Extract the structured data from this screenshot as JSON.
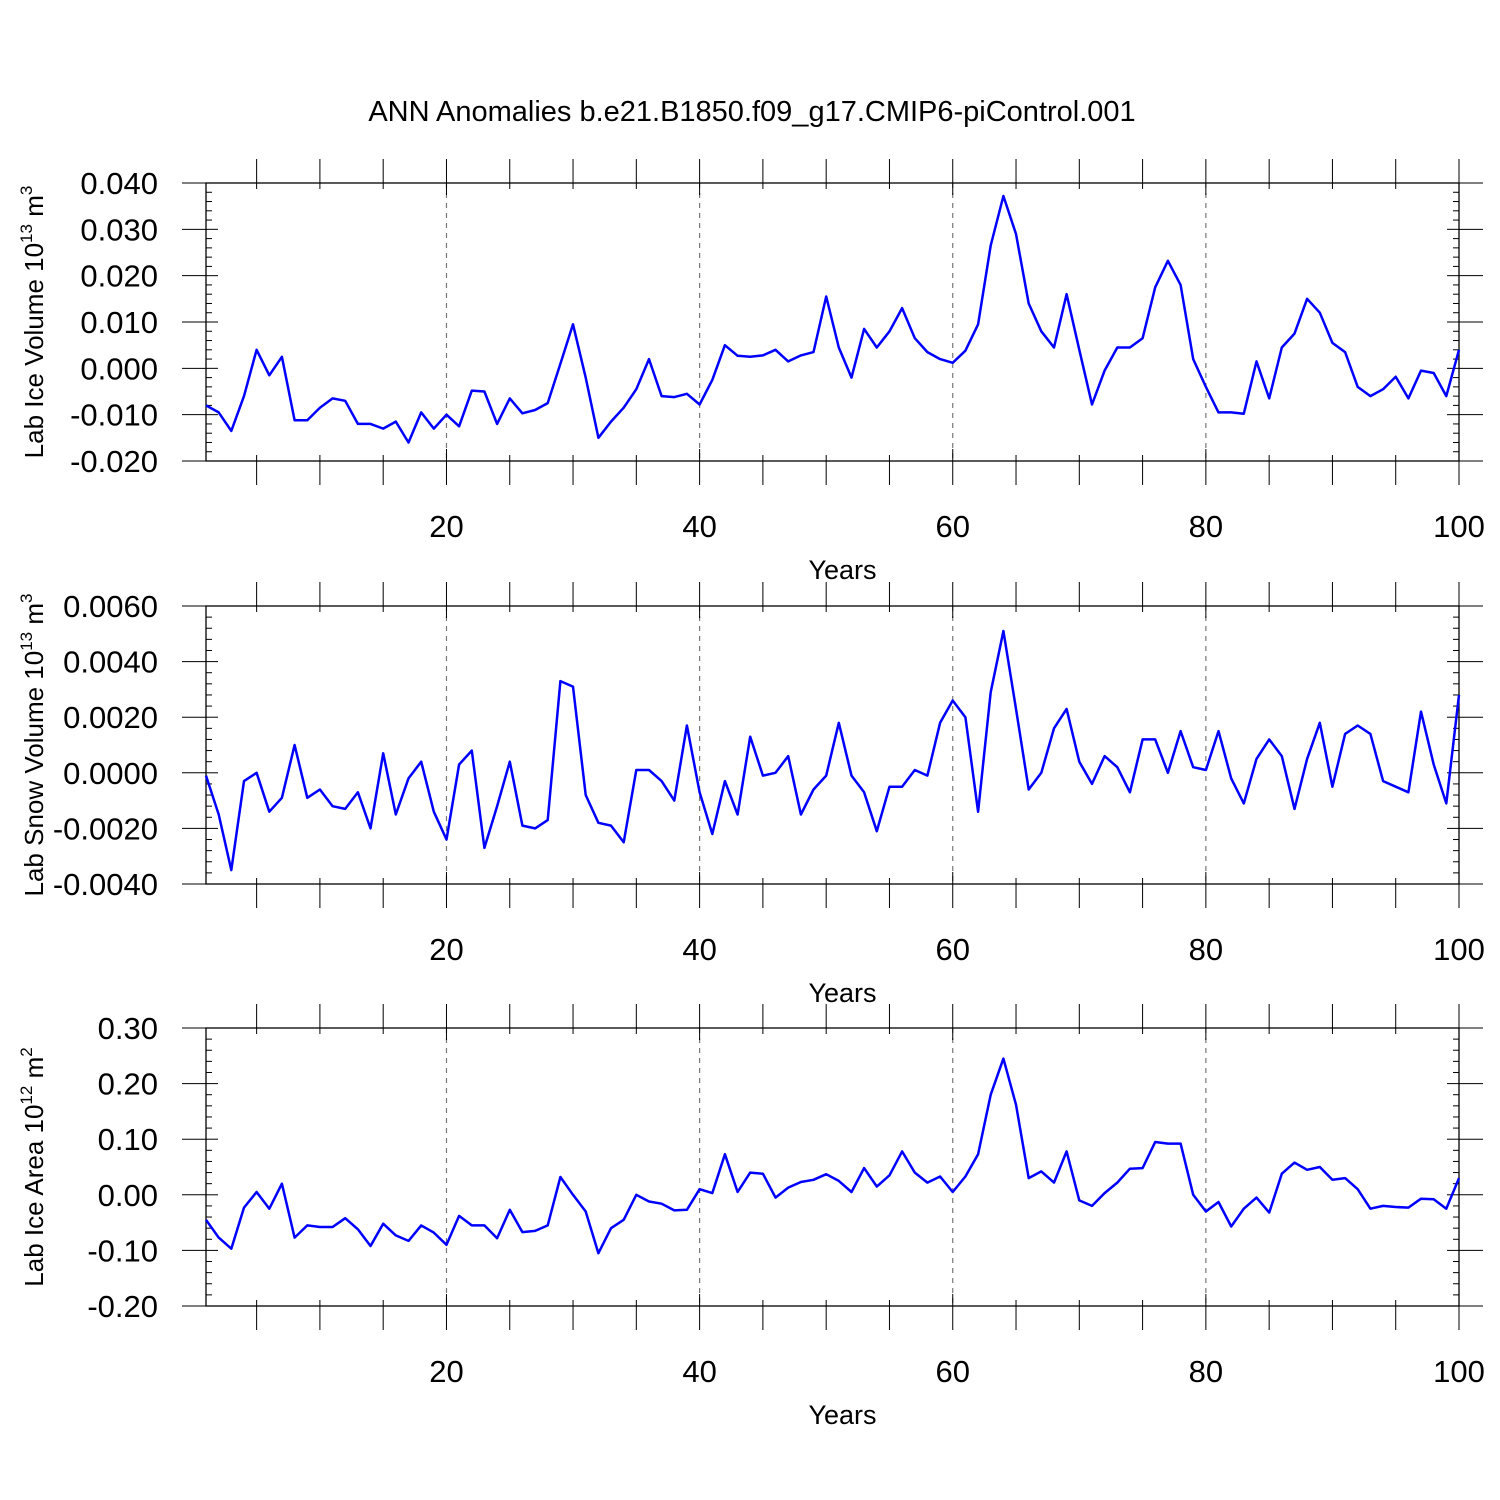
{
  "title": "ANN Anomalies b.e21.B1850.f09_g17.CMIP6-piControl.001",
  "line_color": "#0000ff",
  "chart_data": [
    {
      "type": "line",
      "ylabel": {
        "base": "Lab Ice Volume 10",
        "exp": "13",
        "unit": " m",
        "uexp": "3"
      },
      "xlabel": "Years",
      "xlim": [
        1,
        100
      ],
      "ylim": [
        -0.02,
        0.04
      ],
      "yticks": [
        -0.02,
        -0.01,
        0.0,
        0.01,
        0.02,
        0.03,
        0.04
      ],
      "ytick_labels": [
        "-0.020",
        "-0.010",
        "0.000",
        "0.010",
        "0.020",
        "0.030",
        "0.040"
      ],
      "xticks": [
        20,
        40,
        60,
        80,
        100
      ],
      "xtick_labels": [
        "20",
        "40",
        "60",
        "80",
        "100"
      ],
      "grid_x": [
        20,
        40,
        60,
        80
      ],
      "x_start": 1,
      "values": [
        -0.008,
        -0.0095,
        -0.0135,
        -0.006,
        0.004,
        -0.0015,
        0.0025,
        -0.0112,
        -0.0112,
        -0.0085,
        -0.0065,
        -0.007,
        -0.012,
        -0.012,
        -0.013,
        -0.0115,
        -0.016,
        -0.0095,
        -0.013,
        -0.01,
        -0.0125,
        -0.0048,
        -0.005,
        -0.012,
        -0.0065,
        -0.0097,
        -0.009,
        -0.0075,
        0.001,
        0.0095,
        -0.002,
        -0.015,
        -0.0115,
        -0.0085,
        -0.0045,
        0.002,
        -0.006,
        -0.0062,
        -0.0055,
        -0.0078,
        -0.0025,
        0.005,
        0.0027,
        0.0025,
        0.0028,
        0.004,
        0.0015,
        0.0028,
        0.0035,
        0.0155,
        0.0045,
        -0.002,
        0.0085,
        0.0045,
        0.008,
        0.013,
        0.0065,
        0.0035,
        0.002,
        0.0012,
        0.0038,
        0.0095,
        0.0265,
        0.0372,
        0.029,
        0.014,
        0.008,
        0.0045,
        0.016,
        0.004,
        -0.0078,
        -0.0005,
        0.0045,
        0.0045,
        0.0065,
        0.0175,
        0.0232,
        0.018,
        0.002,
        -0.004,
        -0.0095,
        -0.0095,
        -0.0098,
        0.0015,
        -0.0065,
        0.0045,
        0.0075,
        0.015,
        0.012,
        0.0055,
        0.0035,
        -0.004,
        -0.006,
        -0.0045,
        -0.0018,
        -0.0065,
        -0.0005,
        -0.001,
        -0.006,
        0.004
      ]
    },
    {
      "type": "line",
      "ylabel": {
        "base": "Lab Snow Volume 10",
        "exp": "13",
        "unit": " m",
        "uexp": "3"
      },
      "xlabel": "Years",
      "xlim": [
        1,
        100
      ],
      "ylim": [
        -0.004,
        0.006
      ],
      "yticks": [
        -0.004,
        -0.002,
        0.0,
        0.002,
        0.004,
        0.006
      ],
      "ytick_labels": [
        "-0.0040",
        "-0.0020",
        "0.0000",
        "0.0020",
        "0.0040",
        "0.0060"
      ],
      "xticks": [
        20,
        40,
        60,
        80,
        100
      ],
      "xtick_labels": [
        "20",
        "40",
        "60",
        "80",
        "100"
      ],
      "grid_x": [
        20,
        40,
        60,
        80
      ],
      "x_start": 1,
      "values": [
        -0.0001,
        -0.0015,
        -0.0035,
        -0.0003,
        0.0,
        -0.0014,
        -0.0009,
        0.001,
        -0.0009,
        -0.0006,
        -0.0012,
        -0.0013,
        -0.0007,
        -0.002,
        0.0007,
        -0.0015,
        -0.0002,
        0.0004,
        -0.0014,
        -0.0024,
        0.0003,
        0.0008,
        -0.0027,
        -0.0012,
        0.0004,
        -0.0019,
        -0.002,
        -0.0017,
        0.0033,
        0.0031,
        -0.0008,
        -0.0018,
        -0.0019,
        -0.0025,
        0.0001,
        0.0001,
        -0.0003,
        -0.001,
        0.0017,
        -0.0007,
        -0.0022,
        -0.0003,
        -0.0015,
        0.0013,
        -0.0001,
        0.0,
        0.0006,
        -0.0015,
        -0.0006,
        -0.0001,
        0.0018,
        -0.0001,
        -0.0007,
        -0.0021,
        -0.0005,
        -0.0005,
        0.0001,
        -0.0001,
        0.0018,
        0.0026,
        0.002,
        -0.0014,
        0.0029,
        0.0051,
        0.0023,
        -0.0006,
        0.0,
        0.0016,
        0.0023,
        0.0004,
        -0.0004,
        0.0006,
        0.0002,
        -0.0007,
        0.0012,
        0.0012,
        0.0,
        0.0015,
        0.0002,
        0.0001,
        0.0015,
        -0.0002,
        -0.0011,
        0.0005,
        0.0012,
        0.0006,
        -0.0013,
        0.0005,
        0.0018,
        -0.0005,
        0.0014,
        0.0017,
        0.0014,
        -0.0003,
        -0.0005,
        -0.0007,
        0.0022,
        0.0003,
        -0.0011,
        0.0028
      ]
    },
    {
      "type": "line",
      "ylabel": {
        "base": "Lab Ice Area 10",
        "exp": "12",
        "unit": " m",
        "uexp": "2"
      },
      "xlabel": "Years",
      "xlim": [
        1,
        100
      ],
      "ylim": [
        -0.2,
        0.3
      ],
      "yticks": [
        -0.2,
        -0.1,
        0.0,
        0.1,
        0.2,
        0.3
      ],
      "ytick_labels": [
        "-0.20",
        "-0.10",
        "0.00",
        "0.10",
        "0.20",
        "0.30"
      ],
      "xticks": [
        20,
        40,
        60,
        80,
        100
      ],
      "xtick_labels": [
        "20",
        "40",
        "60",
        "80",
        "100"
      ],
      "grid_x": [
        20,
        40,
        60,
        80
      ],
      "x_start": 1,
      "values": [
        -0.045,
        -0.077,
        -0.097,
        -0.023,
        0.005,
        -0.025,
        0.02,
        -0.077,
        -0.055,
        -0.058,
        -0.058,
        -0.042,
        -0.062,
        -0.092,
        -0.052,
        -0.073,
        -0.083,
        -0.055,
        -0.068,
        -0.09,
        -0.038,
        -0.055,
        -0.055,
        -0.078,
        -0.027,
        -0.067,
        -0.065,
        -0.055,
        0.032,
        0.0,
        -0.03,
        -0.105,
        -0.06,
        -0.045,
        0.0,
        -0.012,
        -0.016,
        -0.028,
        -0.027,
        0.01,
        0.003,
        0.073,
        0.005,
        0.04,
        0.038,
        -0.005,
        0.013,
        0.023,
        0.027,
        0.037,
        0.025,
        0.005,
        0.048,
        0.015,
        0.035,
        0.078,
        0.04,
        0.022,
        0.033,
        0.005,
        0.033,
        0.073,
        0.18,
        0.245,
        0.162,
        0.03,
        0.042,
        0.022,
        0.078,
        -0.01,
        -0.02,
        0.003,
        0.022,
        0.047,
        0.048,
        0.095,
        0.092,
        0.092,
        0.0,
        -0.03,
        -0.013,
        -0.057,
        -0.025,
        -0.005,
        -0.032,
        0.038,
        0.058,
        0.045,
        0.05,
        0.027,
        0.03,
        0.01,
        -0.025,
        -0.02,
        -0.022,
        -0.023,
        -0.007,
        -0.008,
        -0.025,
        0.03
      ]
    }
  ]
}
